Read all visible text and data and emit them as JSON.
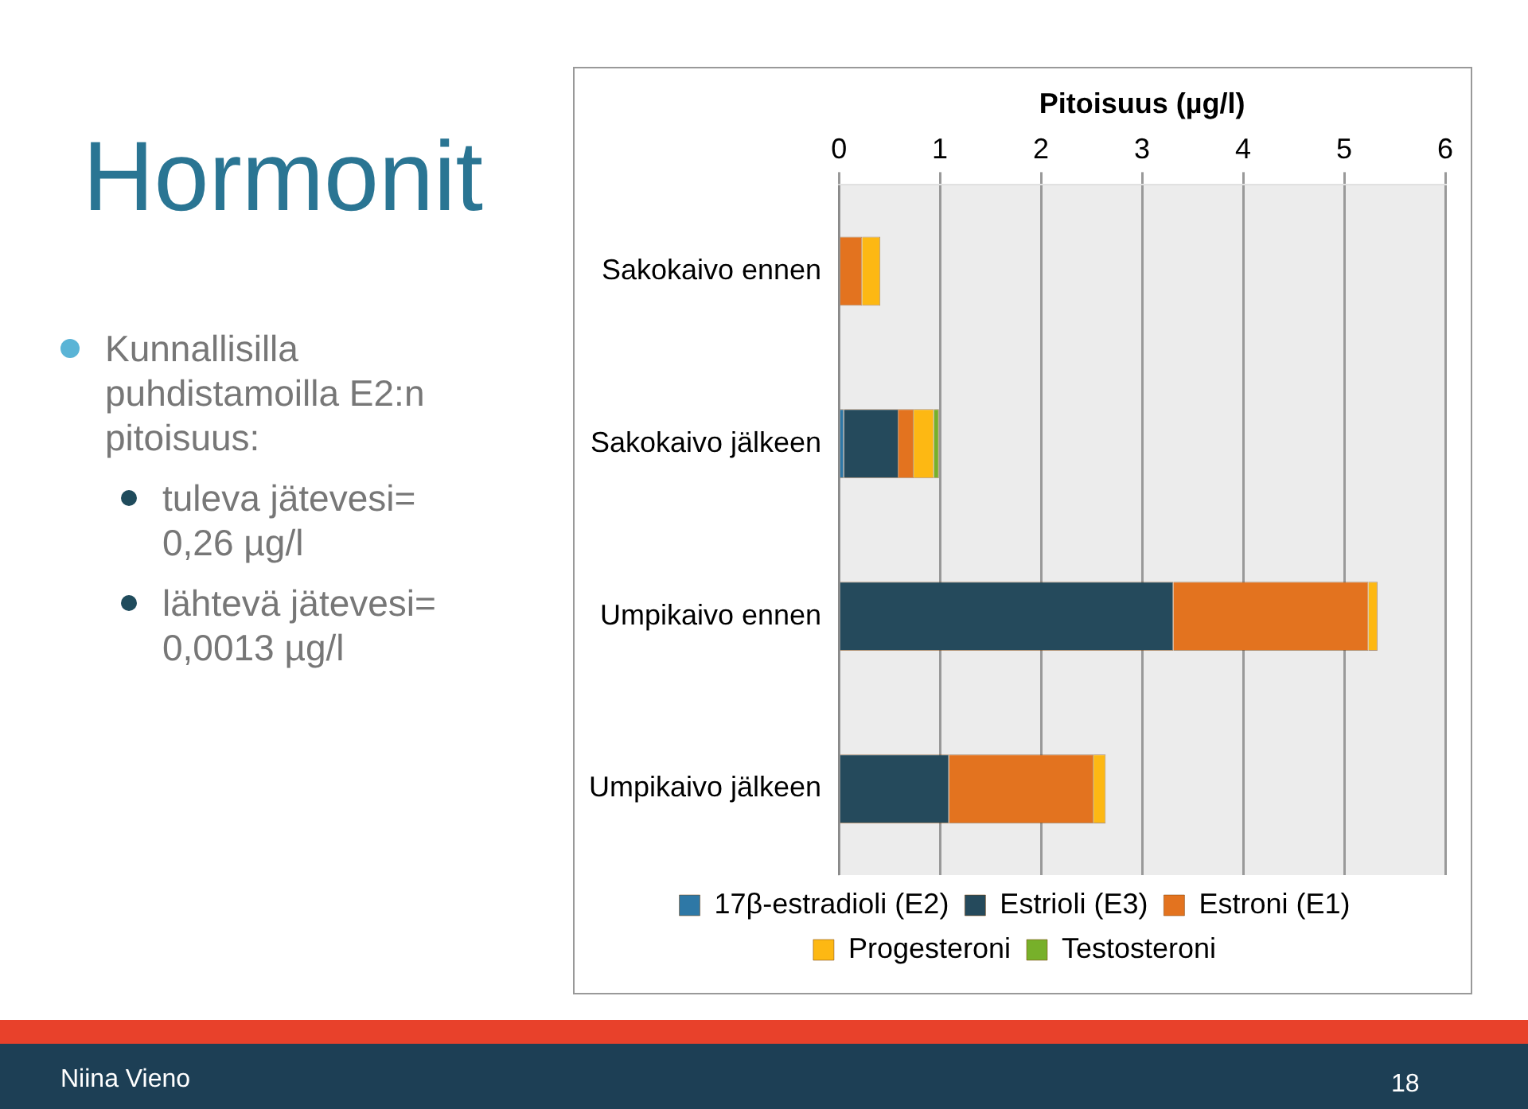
{
  "chart_data": {
    "type": "bar",
    "title": "Hormonit",
    "xlabel": "Pitoisuus (µg/l)",
    "orientation": "horizontal",
    "stacked": true,
    "categories": [
      "Sakokaivo ennen",
      "Sakokaivo jälkeen",
      "Umpikaivo ennen",
      "Umpikaivo jälkeen"
    ],
    "series": [
      {
        "name": "17β-estradioli (E2)",
        "color": "#2e78a6",
        "values": [
          0,
          0.05,
          0,
          0
        ]
      },
      {
        "name": "Estrioli (E3)",
        "color": "#254a5c",
        "values": [
          0,
          0.54,
          3.31,
          1.09
        ]
      },
      {
        "name": "Estroni (E1)",
        "color": "#e3731f",
        "values": [
          0.23,
          0.15,
          1.93,
          1.43
        ]
      },
      {
        "name": "Progesteroni",
        "color": "#fdb813",
        "values": [
          0.18,
          0.2,
          0.09,
          0.12
        ]
      },
      {
        "name": "Testosteroni",
        "color": "#77b02a",
        "values": [
          0,
          0.05,
          0,
          0
        ]
      }
    ],
    "xlim": [
      0,
      6
    ],
    "xticks": [
      0,
      1,
      2,
      3,
      4,
      5,
      6
    ],
    "grid": "x",
    "legend": "bottom",
    "annotations": [
      "Kunnallisilla puhdistamoilla E2:n pitoisuus:",
      "tuleva jätevesi= 0,26 µg/l",
      "lähtevä jätevesi= 0,0013 µg/l",
      "Niina Vieno",
      "18"
    ]
  }
}
